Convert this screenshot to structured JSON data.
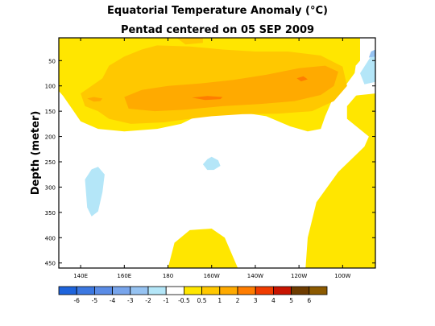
{
  "chart_data": {
    "type": "heatmap",
    "title": "Equatorial Temperature Anomaly (°C)",
    "subtitle": "Pentad centered on 05 SEP 2009",
    "ylabel": "Depth (meter)",
    "xlabel": "",
    "x_ticks": [
      {
        "lon": 140,
        "label": "140E"
      },
      {
        "lon": 160,
        "label": "160E"
      },
      {
        "lon": 180,
        "label": "180"
      },
      {
        "lon": 200,
        "label": "160W"
      },
      {
        "lon": 220,
        "label": "140W"
      },
      {
        "lon": 240,
        "label": "120W"
      },
      {
        "lon": 260,
        "label": "100W"
      }
    ],
    "xlim": [
      130,
      275
    ],
    "y_ticks": [
      50,
      100,
      150,
      200,
      250,
      300,
      350,
      400,
      450
    ],
    "ylim": [
      460,
      5
    ],
    "color_levels": [
      {
        "label": "-6",
        "color": "#1e64dc"
      },
      {
        "label": "-5",
        "color": "#3c78e1"
      },
      {
        "label": "-4",
        "color": "#5a8ce6"
      },
      {
        "label": "-3",
        "color": "#78a5ec"
      },
      {
        "label": "-2",
        "color": "#96c3f2"
      },
      {
        "label": "-1",
        "color": "#b4e6f8"
      },
      {
        "label": "-0.5",
        "color": "#ffffff"
      },
      {
        "label": "0.5",
        "color": "#ffe600"
      },
      {
        "label": "1",
        "color": "#ffc800"
      },
      {
        "label": "2",
        "color": "#ffaa00"
      },
      {
        "label": "3",
        "color": "#ff7d00"
      },
      {
        "label": "4",
        "color": "#f03c00"
      },
      {
        "label": "5",
        "color": "#c81400"
      },
      {
        "label": "6",
        "color": "#6e3c00"
      },
      {
        "label": "",
        "color": "#8c5a00"
      }
    ],
    "anomaly_regions": [
      {
        "level": 0.5,
        "points": [
          [
            130,
            5
          ],
          [
            268,
            5
          ],
          [
            268,
            60
          ],
          [
            262,
            95
          ],
          [
            256,
            120
          ],
          [
            252,
            160
          ],
          [
            250,
            185
          ],
          [
            244,
            190
          ],
          [
            236,
            180
          ],
          [
            225,
            160
          ],
          [
            210,
            150
          ],
          [
            198,
            150
          ],
          [
            186,
            175
          ],
          [
            175,
            185
          ],
          [
            160,
            190
          ],
          [
            148,
            185
          ],
          [
            140,
            170
          ],
          [
            136,
            145
          ],
          [
            132,
            120
          ],
          [
            130,
            110
          ]
        ]
      },
      {
        "level": 0.5,
        "points": [
          [
            272,
            100
          ],
          [
            275,
            100
          ],
          [
            275,
            460
          ],
          [
            243,
            460
          ],
          [
            244,
            400
          ],
          [
            248,
            330
          ],
          [
            258,
            270
          ],
          [
            270,
            220
          ],
          [
            272,
            200
          ],
          [
            262,
            165
          ],
          [
            262,
            140
          ],
          [
            266,
            120
          ]
        ]
      },
      {
        "level": 0.5,
        "points": [
          [
            180,
            460
          ],
          [
            183,
            410
          ],
          [
            190,
            385
          ],
          [
            200,
            382
          ],
          [
            206,
            400
          ],
          [
            210,
            440
          ],
          [
            212,
            460
          ]
        ]
      },
      {
        "level": -0.5,
        "points": [
          [
            266,
            60
          ],
          [
            270,
            40
          ],
          [
            275,
            15
          ],
          [
            275,
            115
          ],
          [
            264,
            120
          ]
        ]
      },
      {
        "level": -1,
        "points": [
          [
            196,
            255
          ],
          [
            198,
            245
          ],
          [
            200,
            240
          ],
          [
            203,
            247
          ],
          [
            204,
            258
          ],
          [
            201,
            266
          ],
          [
            198,
            266
          ]
        ]
      },
      {
        "level": -1,
        "points": [
          [
            142,
            285
          ],
          [
            145,
            265
          ],
          [
            148,
            260
          ],
          [
            151,
            275
          ],
          [
            150,
            310
          ],
          [
            148,
            348
          ],
          [
            145,
            358
          ],
          [
            143,
            340
          ]
        ]
      },
      {
        "level": -1,
        "points": [
          [
            268,
            75
          ],
          [
            272,
            48
          ],
          [
            275,
            30
          ],
          [
            275,
            92
          ],
          [
            270,
            97
          ]
        ]
      },
      {
        "level": -2,
        "points": [
          [
            273,
            32
          ],
          [
            275,
            28
          ],
          [
            275,
            42
          ],
          [
            272,
            44
          ]
        ]
      },
      {
        "level": 1,
        "points": [
          [
            150,
            85
          ],
          [
            153,
            60
          ],
          [
            160,
            42
          ],
          [
            168,
            28
          ],
          [
            175,
            20
          ],
          [
            190,
            22
          ],
          [
            205,
            28
          ],
          [
            220,
            32
          ],
          [
            235,
            32
          ],
          [
            250,
            40
          ],
          [
            260,
            62
          ],
          [
            262,
            100
          ],
          [
            256,
            130
          ],
          [
            246,
            150
          ],
          [
            230,
            155
          ],
          [
            214,
            156
          ],
          [
            200,
            160
          ],
          [
            190,
            165
          ],
          [
            178,
            172
          ],
          [
            163,
            175
          ],
          [
            153,
            165
          ],
          [
            148,
            150
          ],
          [
            142,
            140
          ],
          [
            140,
            115
          ],
          [
            145,
            100
          ]
        ]
      },
      {
        "level": 1,
        "points": [
          [
            184,
            5
          ],
          [
            196,
            5
          ],
          [
            196,
            15
          ],
          [
            188,
            18
          ]
        ]
      },
      {
        "level": 2,
        "points": [
          [
            160,
            122
          ],
          [
            168,
            108
          ],
          [
            180,
            100
          ],
          [
            195,
            95
          ],
          [
            210,
            88
          ],
          [
            225,
            78
          ],
          [
            240,
            65
          ],
          [
            252,
            60
          ],
          [
            258,
            72
          ],
          [
            256,
            100
          ],
          [
            250,
            118
          ],
          [
            238,
            130
          ],
          [
            222,
            136
          ],
          [
            205,
            140
          ],
          [
            188,
            147
          ],
          [
            174,
            150
          ],
          [
            162,
            145
          ]
        ]
      },
      {
        "level": 2,
        "points": [
          [
            143,
            125
          ],
          [
            146,
            122
          ],
          [
            150,
            125
          ],
          [
            149,
            130
          ],
          [
            146,
            131
          ]
        ]
      },
      {
        "level": 3,
        "points": [
          [
            191,
            123
          ],
          [
            198,
            120
          ],
          [
            205,
            122
          ],
          [
            204,
            126
          ],
          [
            197,
            128
          ]
        ]
      },
      {
        "level": 3,
        "points": [
          [
            239,
            85
          ],
          [
            242,
            81
          ],
          [
            244,
            87
          ],
          [
            241,
            91
          ]
        ]
      }
    ]
  }
}
